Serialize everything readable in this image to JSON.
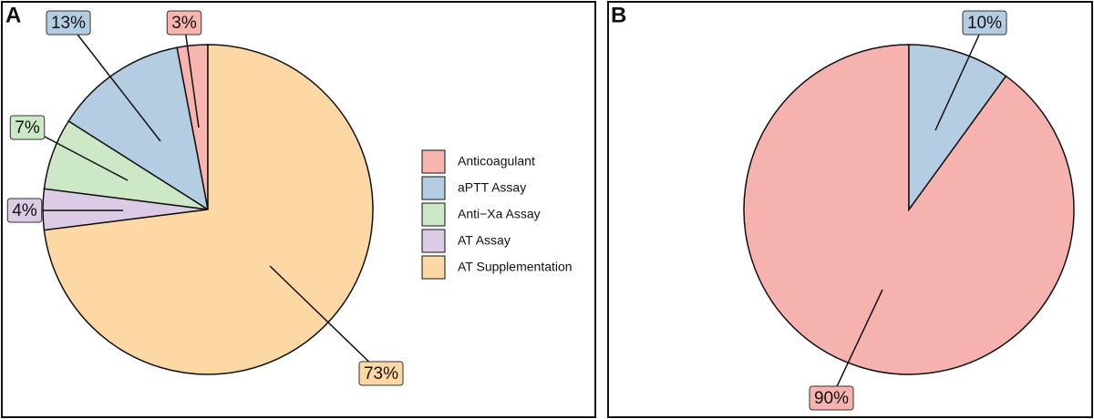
{
  "chart_data": [
    {
      "type": "pie",
      "panel": "A",
      "categories": [
        "Anticoagulant",
        "aPTT Assay",
        "Anti−Xa Assay",
        "AT Assay",
        "AT Supplementation"
      ],
      "values": [
        3,
        13,
        7,
        4,
        73
      ],
      "value_labels": [
        "3%",
        "13%",
        "7%",
        "4%",
        "73%"
      ],
      "colors": [
        "#f8b4ae",
        "#b5cde3",
        "#cce8c7",
        "#dbcbe5",
        "#fdd8a4"
      ],
      "legend": true
    },
    {
      "type": "pie",
      "panel": "B",
      "values": [
        90,
        10
      ],
      "value_labels": [
        "90%",
        "10%"
      ],
      "colors": [
        "#f6b2ae",
        "#b5cde3"
      ],
      "legend": false
    }
  ]
}
